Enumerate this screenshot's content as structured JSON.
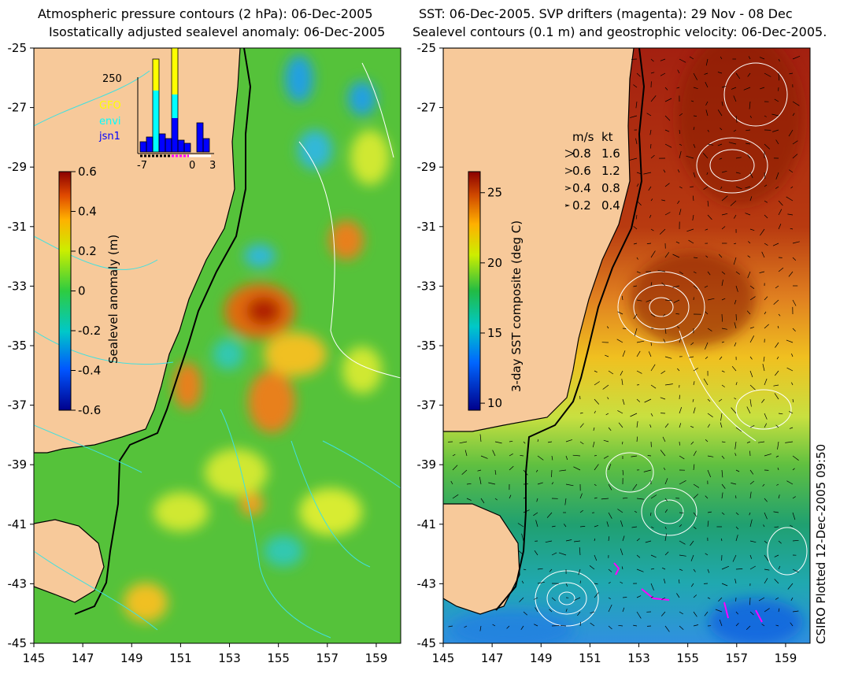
{
  "left_panel": {
    "title_line1": "Atmospheric pressure contours (2 hPa): 06-Dec-2005",
    "title_line2": "Isostatically adjusted sealevel anomaly: 06-Dec-2005",
    "colorbar": {
      "label": "Sealevel anomaly (m)",
      "ticks": [
        "0.6",
        "0.4",
        "0.2",
        "0",
        "-0.2",
        "-0.4",
        "-0.6"
      ],
      "range": [
        -0.6,
        0.6
      ]
    },
    "inset": {
      "y_tick": "250",
      "x_ticks": [
        "-7",
        "0",
        "3"
      ],
      "legend": [
        {
          "label": "GFO",
          "color": "#ffff00"
        },
        {
          "label": "envi",
          "color": "#00ffff"
        },
        {
          "label": "jsn1",
          "color": "#0000ff"
        }
      ]
    }
  },
  "right_panel": {
    "title_line1": "SST: 06-Dec-2005. SVP drifters (magenta): 29 Nov - 08 Dec",
    "title_line2": "Sealevel contours (0.1 m) and geostrophic velocity: 06-Dec-2005.",
    "colorbar": {
      "label": "3-day SST composite (deg C)",
      "ticks": [
        "25",
        "20",
        "15",
        "10"
      ],
      "range": [
        9.5,
        26.5
      ]
    },
    "speed_legend": {
      "header_ms": "m/s",
      "header_kt": "kt",
      "rows": [
        {
          "ms": "0.8",
          "kt": "1.6"
        },
        {
          "ms": "0.6",
          "kt": "1.2"
        },
        {
          "ms": "0.4",
          "kt": "0.8"
        },
        {
          "ms": "0.2",
          "kt": "0.4"
        }
      ]
    }
  },
  "axes": {
    "y_ticks": [
      "-25",
      "-27",
      "-29",
      "-31",
      "-33",
      "-35",
      "-37",
      "-39",
      "-41",
      "-43",
      "-45"
    ],
    "x_ticks": [
      "145",
      "147",
      "149",
      "151",
      "153",
      "155",
      "157",
      "159"
    ],
    "lat_range": [
      -45,
      -25
    ],
    "lon_range": [
      145,
      160
    ]
  },
  "credit": "CSIRO Plotted 12-Dec-2005 09:50",
  "colors": {
    "land": "#f7c99a",
    "ocean_base_left": "#55c23a",
    "contour_cyan": "#40e0e0",
    "drifter": "#ff00ff"
  }
}
